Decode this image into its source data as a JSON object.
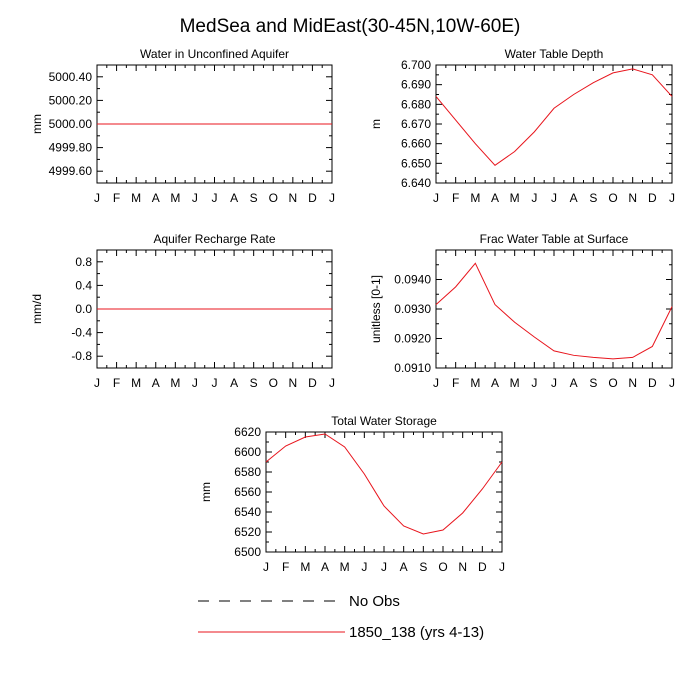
{
  "title": "MedSea and MidEast(30-45N,10W-60E)",
  "colors": {
    "model": "#e8141c",
    "axis": "#000000",
    "obs": "#000000"
  },
  "legend": {
    "entries": [
      {
        "label": "No Obs",
        "style": "dashed",
        "color": "#000000"
      },
      {
        "label": "1850_138 (yrs 4-13)",
        "style": "solid",
        "color": "#e8141c"
      }
    ]
  },
  "chart_data": [
    {
      "type": "line",
      "title": "Water in Unconfined Aquifer",
      "ylabel": "mm",
      "categories": [
        "J",
        "F",
        "M",
        "A",
        "M",
        "J",
        "J",
        "A",
        "S",
        "O",
        "N",
        "D",
        "J"
      ],
      "ylim": [
        4999.5,
        5000.5
      ],
      "yticks": [
        4999.6,
        4999.8,
        5000.0,
        5000.2,
        5000.4
      ],
      "ytick_labels": [
        "4999.60",
        "4999.80",
        "5000.00",
        "5000.20",
        "5000.40"
      ],
      "series": [
        {
          "name": "1850_138 (yrs 4-13)",
          "values": [
            5000,
            5000,
            5000,
            5000,
            5000,
            5000,
            5000,
            5000,
            5000,
            5000,
            5000,
            5000,
            5000
          ]
        }
      ]
    },
    {
      "type": "line",
      "title": "Water Table Depth",
      "ylabel": "m",
      "categories": [
        "J",
        "F",
        "M",
        "A",
        "M",
        "J",
        "J",
        "A",
        "S",
        "O",
        "N",
        "D",
        "J"
      ],
      "ylim": [
        6.64,
        6.7
      ],
      "yticks": [
        6.64,
        6.65,
        6.66,
        6.67,
        6.68,
        6.69,
        6.7
      ],
      "ytick_labels": [
        "6.640",
        "6.650",
        "6.660",
        "6.670",
        "6.680",
        "6.690",
        "6.700"
      ],
      "series": [
        {
          "name": "1850_138 (yrs 4-13)",
          "values": [
            6.684,
            6.672,
            6.66,
            6.649,
            6.656,
            6.666,
            6.678,
            6.685,
            6.691,
            6.696,
            6.698,
            6.695,
            6.684
          ]
        }
      ]
    },
    {
      "type": "line",
      "title": "Aquifer Recharge Rate",
      "ylabel": "mm/d",
      "categories": [
        "J",
        "F",
        "M",
        "A",
        "M",
        "J",
        "J",
        "A",
        "S",
        "O",
        "N",
        "D",
        "J"
      ],
      "ylim": [
        -1.0,
        1.0
      ],
      "yticks": [
        -0.8,
        -0.4,
        0.0,
        0.4,
        0.8
      ],
      "ytick_labels": [
        "-0.8",
        "-0.4",
        "0.0",
        "0.4",
        "0.8"
      ],
      "series": [
        {
          "name": "1850_138 (yrs 4-13)",
          "values": [
            0,
            0,
            0,
            0,
            0,
            0,
            0,
            0,
            0,
            0,
            0,
            0,
            0
          ]
        }
      ]
    },
    {
      "type": "line",
      "title": "Frac Water Table at Surface",
      "ylabel": "unitless [0-1]",
      "categories": [
        "J",
        "F",
        "M",
        "A",
        "M",
        "J",
        "J",
        "A",
        "S",
        "O",
        "N",
        "D",
        "J"
      ],
      "ylim": [
        0.091,
        0.095
      ],
      "yticks": [
        0.091,
        0.092,
        0.093,
        0.094
      ],
      "ytick_labels": [
        "0.0910",
        "0.0920",
        "0.0930",
        "0.0940"
      ],
      "series": [
        {
          "name": "1850_138 (yrs 4-13)",
          "values": [
            0.09315,
            0.09375,
            0.09455,
            0.09315,
            0.09255,
            0.09205,
            0.09158,
            0.09143,
            0.09136,
            0.09131,
            0.09136,
            0.09173,
            0.09308
          ]
        }
      ]
    },
    {
      "type": "line",
      "title": "Total Water Storage",
      "ylabel": "mm",
      "categories": [
        "J",
        "F",
        "M",
        "A",
        "M",
        "J",
        "J",
        "A",
        "S",
        "O",
        "N",
        "D",
        "J"
      ],
      "ylim": [
        6500,
        6620
      ],
      "yticks": [
        6500,
        6520,
        6540,
        6560,
        6580,
        6600,
        6620
      ],
      "ytick_labels": [
        "6500",
        "6520",
        "6540",
        "6560",
        "6580",
        "6600",
        "6620"
      ],
      "series": [
        {
          "name": "1850_138 (yrs 4-13)",
          "values": [
            6590,
            6606,
            6615,
            6618,
            6605,
            6578,
            6546,
            6526,
            6518,
            6522,
            6539,
            6563,
            6590
          ]
        }
      ]
    }
  ]
}
